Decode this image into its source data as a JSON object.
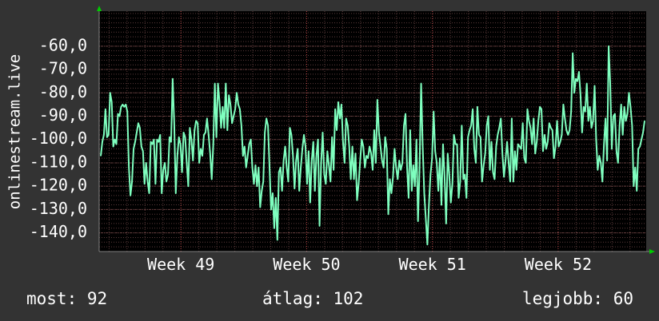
{
  "chart_data": {
    "type": "line",
    "ylabel": "onlinestream.live",
    "ylim": [
      -148,
      -45
    ],
    "y_ticks": [
      -140,
      -130,
      -120,
      -110,
      -100,
      -90,
      -80,
      -70,
      -60
    ],
    "y_tick_labels": [
      "-140,0",
      "-130,0",
      "-120,0",
      "-110,0",
      "-100,0",
      "-90,0",
      "-80,0",
      "-70,0",
      "-60,0"
    ],
    "xlim": [
      48.35,
      52.7
    ],
    "x_ticks": [
      49,
      50,
      51,
      52
    ],
    "x_tick_labels": [
      "Week 49",
      "Week 50",
      "Week 51",
      "Week 52"
    ],
    "grid": true,
    "colors": {
      "background": "#333333",
      "plot": "#000000",
      "line": "#7fffbf",
      "grid_minor": "#5a3a3a",
      "axis_arrow": "#00cc00"
    },
    "series": [
      {
        "values": [
          -107,
          -101,
          -98,
          -87,
          -99,
          -98,
          -80,
          -84,
          -103,
          -100,
          -102,
          -89,
          -90,
          -86,
          -85,
          -86,
          -85,
          -88,
          -112,
          -124,
          -118,
          -104,
          -101,
          -97,
          -93,
          -95,
          -103,
          -105,
          -119,
          -110,
          -118,
          -123,
          -101,
          -102,
          -100,
          -119,
          -100,
          -101,
          -98,
          -123,
          -113,
          -110,
          -118,
          -115,
          -99,
          -101,
          -74,
          -93,
          -123,
          -107,
          -99,
          -102,
          -114,
          -97,
          -99,
          -110,
          -120,
          -95,
          -100,
          -109,
          -96,
          -92,
          -93,
          -110,
          -104,
          -107,
          -98,
          -97,
          -91,
          -98,
          -106,
          -117,
          -102,
          -76,
          -99,
          -76,
          -84,
          -95,
          -86,
          -95,
          -76,
          -96,
          -81,
          -85,
          -93,
          -90,
          -87,
          -80,
          -85,
          -87,
          -94,
          -107,
          -103,
          -112,
          -107,
          -102,
          -100,
          -112,
          -119,
          -111,
          -120,
          -112,
          -129,
          -122,
          -118,
          -97,
          -91,
          -94,
          -112,
          -130,
          -123,
          -138,
          -125,
          -143,
          -114,
          -112,
          -122,
          -109,
          -103,
          -112,
          -118,
          -95,
          -98,
          -107,
          -121,
          -109,
          -104,
          -122,
          -112,
          -104,
          -98,
          -103,
          -119,
          -105,
          -127,
          -109,
          -101,
          -122,
          -107,
          -100,
          -137,
          -110,
          -97,
          -115,
          -119,
          -105,
          -111,
          -118,
          -99,
          -113,
          -87,
          -96,
          -84,
          -91,
          -85,
          -101,
          -110,
          -91,
          -94,
          -103,
          -117,
          -103,
          -117,
          -106,
          -126,
          -119,
          -109,
          -100,
          -103,
          -112,
          -107,
          -108,
          -103,
          -106,
          -113,
          -96,
          -110,
          -83,
          -97,
          -103,
          -109,
          -112,
          -99,
          -104,
          -132,
          -117,
          -123,
          -116,
          -104,
          -112,
          -117,
          -109,
          -113,
          -110,
          -94,
          -89,
          -112,
          -125,
          -96,
          -122,
          -111,
          -120,
          -100,
          -135,
          -112,
          -76,
          -103,
          -123,
          -134,
          -145,
          -128,
          -115,
          -108,
          -88,
          -105,
          -110,
          -122,
          -108,
          -128,
          -102,
          -116,
          -136,
          -106,
          -115,
          -127,
          -119,
          -98,
          -102,
          -102,
          -125,
          -118,
          -94,
          -117,
          -115,
          -125,
          -99,
          -96,
          -94,
          -87,
          -104,
          -110,
          -86,
          -98,
          -99,
          -118,
          -111,
          -106,
          -94,
          -90,
          -113,
          -101,
          -114,
          -117,
          -103,
          -98,
          -95,
          -91,
          -106,
          -116,
          -109,
          -101,
          -110,
          -118,
          -91,
          -118,
          -105,
          -113,
          -102,
          -103,
          -104,
          -93,
          -108,
          -110,
          -87,
          -92,
          -95,
          -102,
          -91,
          -106,
          -101,
          -92,
          -86,
          -87,
          -105,
          -98,
          -104,
          -101,
          -93,
          -95,
          -96,
          -108,
          -103,
          -92,
          -103,
          -101,
          -98,
          -85,
          -91,
          -96,
          -98,
          -96,
          -88,
          -63,
          -80,
          -74,
          -75,
          -71,
          -81,
          -97,
          -86,
          -88,
          -76,
          -92,
          -86,
          -95,
          -92,
          -77,
          -100,
          -113,
          -107,
          -110,
          -118,
          -102,
          -91,
          -109,
          -60,
          -76,
          -104,
          -90,
          -89,
          -105,
          -110,
          -94,
          -85,
          -98,
          -86,
          -92,
          -89,
          -80,
          -86,
          -94,
          -120,
          -112,
          -122,
          -104,
          -103,
          -100,
          -97,
          -92
        ]
      }
    ]
  },
  "footer": {
    "most": "most: 92",
    "avg": "átlag: 102",
    "best": "legjobb: 60"
  }
}
